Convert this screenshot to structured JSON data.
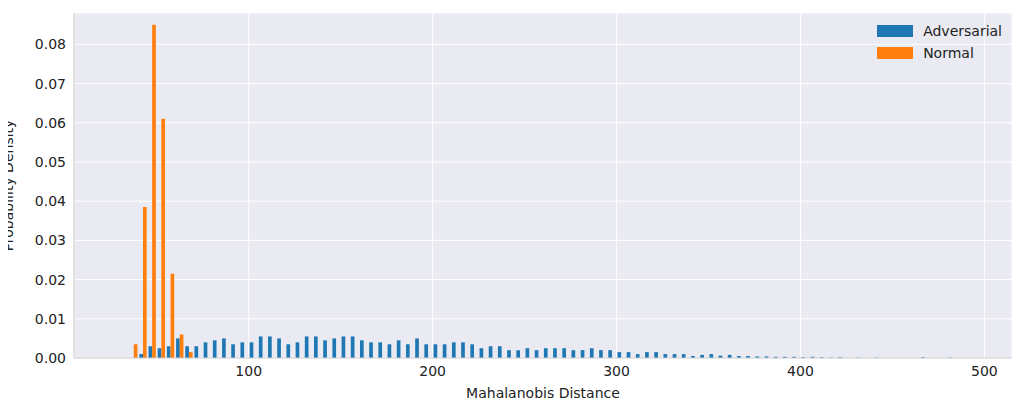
{
  "chart_data": {
    "type": "histogram",
    "xlabel": "Mahalanobis Distance",
    "ylabel": "Probability Density",
    "bins": [
      35,
      40,
      45,
      50,
      55,
      60,
      65,
      70,
      75,
      80,
      85,
      90,
      95,
      100,
      105,
      110,
      115,
      120,
      125,
      130,
      135,
      140,
      145,
      150,
      155,
      160,
      165,
      170,
      175,
      180,
      185,
      190,
      195,
      200,
      205,
      210,
      215,
      220,
      225,
      230,
      235,
      240,
      245,
      250,
      255,
      260,
      265,
      270,
      275,
      280,
      285,
      290,
      295,
      300,
      305,
      310,
      315,
      320,
      325,
      330,
      335,
      340,
      345,
      350,
      355,
      360,
      365,
      370,
      375,
      380,
      385,
      390,
      395,
      400,
      405,
      410,
      415,
      420,
      425,
      430,
      435,
      440,
      445,
      450,
      455,
      460,
      465,
      470,
      475,
      480,
      485,
      490
    ],
    "series": [
      {
        "name": "Adversarial",
        "color": "#1f77b4",
        "values": [
          0,
          0.001,
          0.003,
          0.0025,
          0.003,
          0.005,
          0.003,
          0.003,
          0.004,
          0.0045,
          0.005,
          0.0035,
          0.004,
          0.004,
          0.0055,
          0.0055,
          0.005,
          0.0035,
          0.004,
          0.0055,
          0.0055,
          0.0045,
          0.005,
          0.0055,
          0.0055,
          0.0045,
          0.004,
          0.004,
          0.0035,
          0.0045,
          0.0035,
          0.005,
          0.0035,
          0.0035,
          0.0035,
          0.004,
          0.004,
          0.0035,
          0.0025,
          0.003,
          0.003,
          0.002,
          0.002,
          0.0025,
          0.002,
          0.0025,
          0.0025,
          0.0025,
          0.002,
          0.002,
          0.0025,
          0.002,
          0.002,
          0.0015,
          0.0015,
          0.001,
          0.0015,
          0.0015,
          0.001,
          0.001,
          0.001,
          0.0005,
          0.0008,
          0.001,
          0.0006,
          0.0008,
          0.0005,
          0.0005,
          0.0004,
          0.0004,
          0.0003,
          0.0003,
          0.0003,
          0.0002,
          0.0003,
          0.0002,
          0.0001,
          0.0002,
          0,
          0.0001,
          0,
          0.0001,
          0,
          0,
          0,
          0,
          0.0002,
          0,
          0,
          0.0001,
          0
        ]
      },
      {
        "name": "Normal",
        "color": "#ff7f0e",
        "values": [
          0.0035,
          0.0385,
          0.085,
          0.061,
          0.0215,
          0.006,
          0.0015,
          0,
          0,
          0,
          0,
          0,
          0,
          0,
          0,
          0,
          0,
          0,
          0,
          0,
          0,
          0,
          0,
          0,
          0,
          0,
          0,
          0,
          0,
          0,
          0,
          0,
          0,
          0,
          0,
          0,
          0,
          0,
          0,
          0,
          0,
          0,
          0,
          0,
          0,
          0,
          0,
          0,
          0,
          0,
          0,
          0,
          0,
          0,
          0,
          0,
          0,
          0,
          0,
          0,
          0,
          0,
          0,
          0,
          0,
          0,
          0,
          0,
          0,
          0,
          0,
          0,
          0,
          0,
          0,
          0,
          0,
          0,
          0,
          0,
          0,
          0,
          0,
          0,
          0,
          0,
          0,
          0,
          0,
          0,
          0
        ]
      }
    ],
    "xlim": [
      5,
      515
    ],
    "xticks": [
      100,
      200,
      300,
      400,
      500
    ],
    "ylim": [
      0,
      0.088
    ],
    "yticks": [
      {
        "value": 0,
        "label": "0.00"
      },
      {
        "value": 0.01,
        "label": "0.01"
      },
      {
        "value": 0.02,
        "label": "0.02"
      },
      {
        "value": 0.03,
        "label": "0.03"
      },
      {
        "value": 0.04,
        "label": "0.04"
      },
      {
        "value": 0.05,
        "label": "0.05"
      },
      {
        "value": 0.06,
        "label": "0.06"
      },
      {
        "value": 0.07,
        "label": "0.07"
      },
      {
        "value": 0.08,
        "label": "0.08"
      }
    ],
    "grid": true,
    "legend": "upper right"
  }
}
